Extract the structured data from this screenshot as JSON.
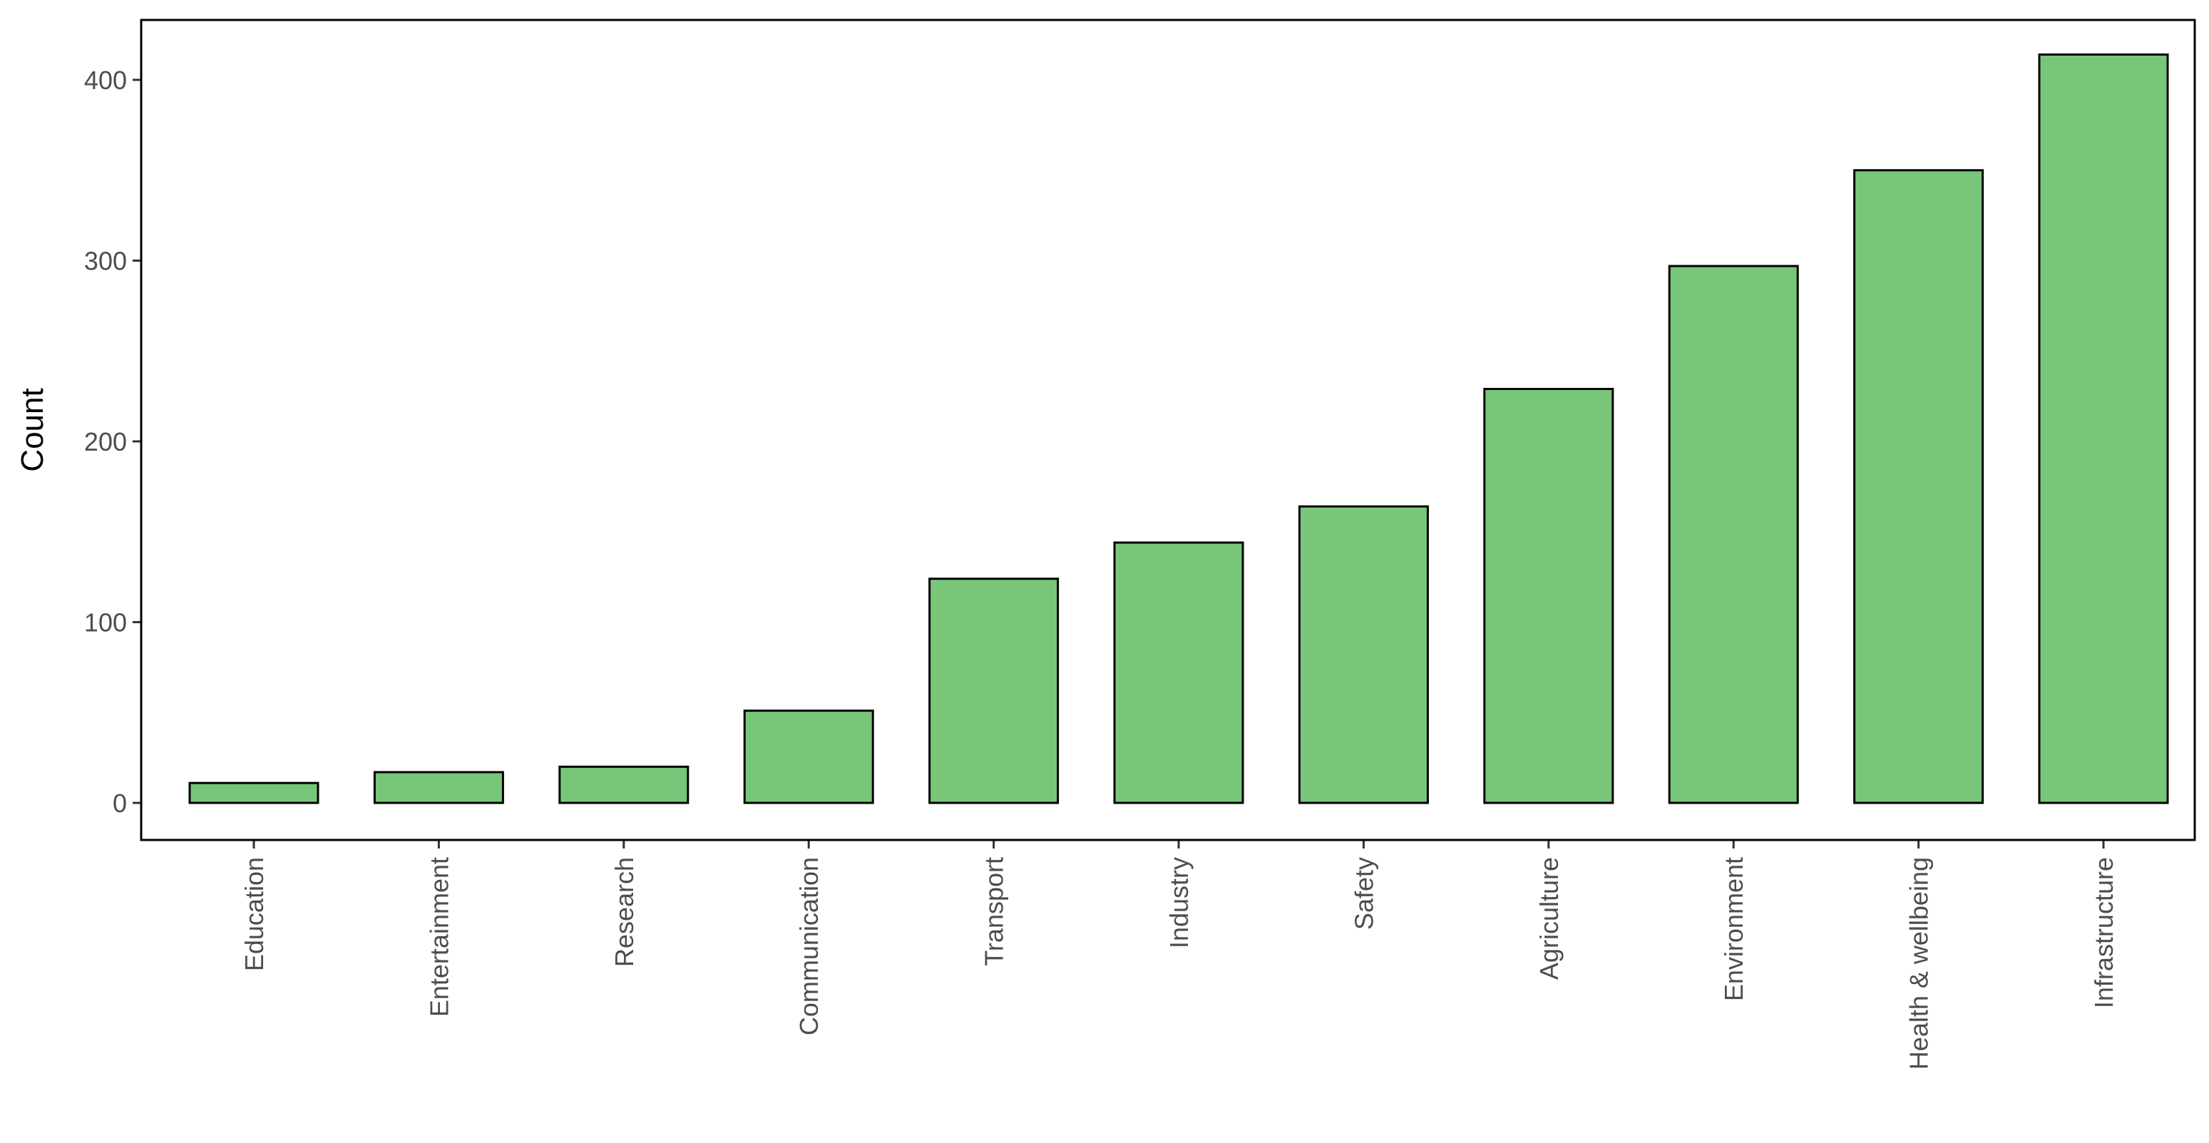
{
  "chart_data": {
    "type": "bar",
    "categories": [
      "Education",
      "Entertainment",
      "Research",
      "Communication",
      "Transport",
      "Industry",
      "Safety",
      "Agriculture",
      "Environment",
      "Health & wellbeing",
      "Infrastructure"
    ],
    "values": [
      11,
      17,
      20,
      51,
      124,
      144,
      164,
      229,
      297,
      350,
      414
    ],
    "xlabel": "",
    "ylabel": "Count",
    "ylim": [
      0,
      435
    ],
    "yticks": [
      0,
      100,
      200,
      300,
      400
    ],
    "bar_fill": "#78c679",
    "bar_stroke": "#000000",
    "grid": false,
    "legend": "none"
  }
}
